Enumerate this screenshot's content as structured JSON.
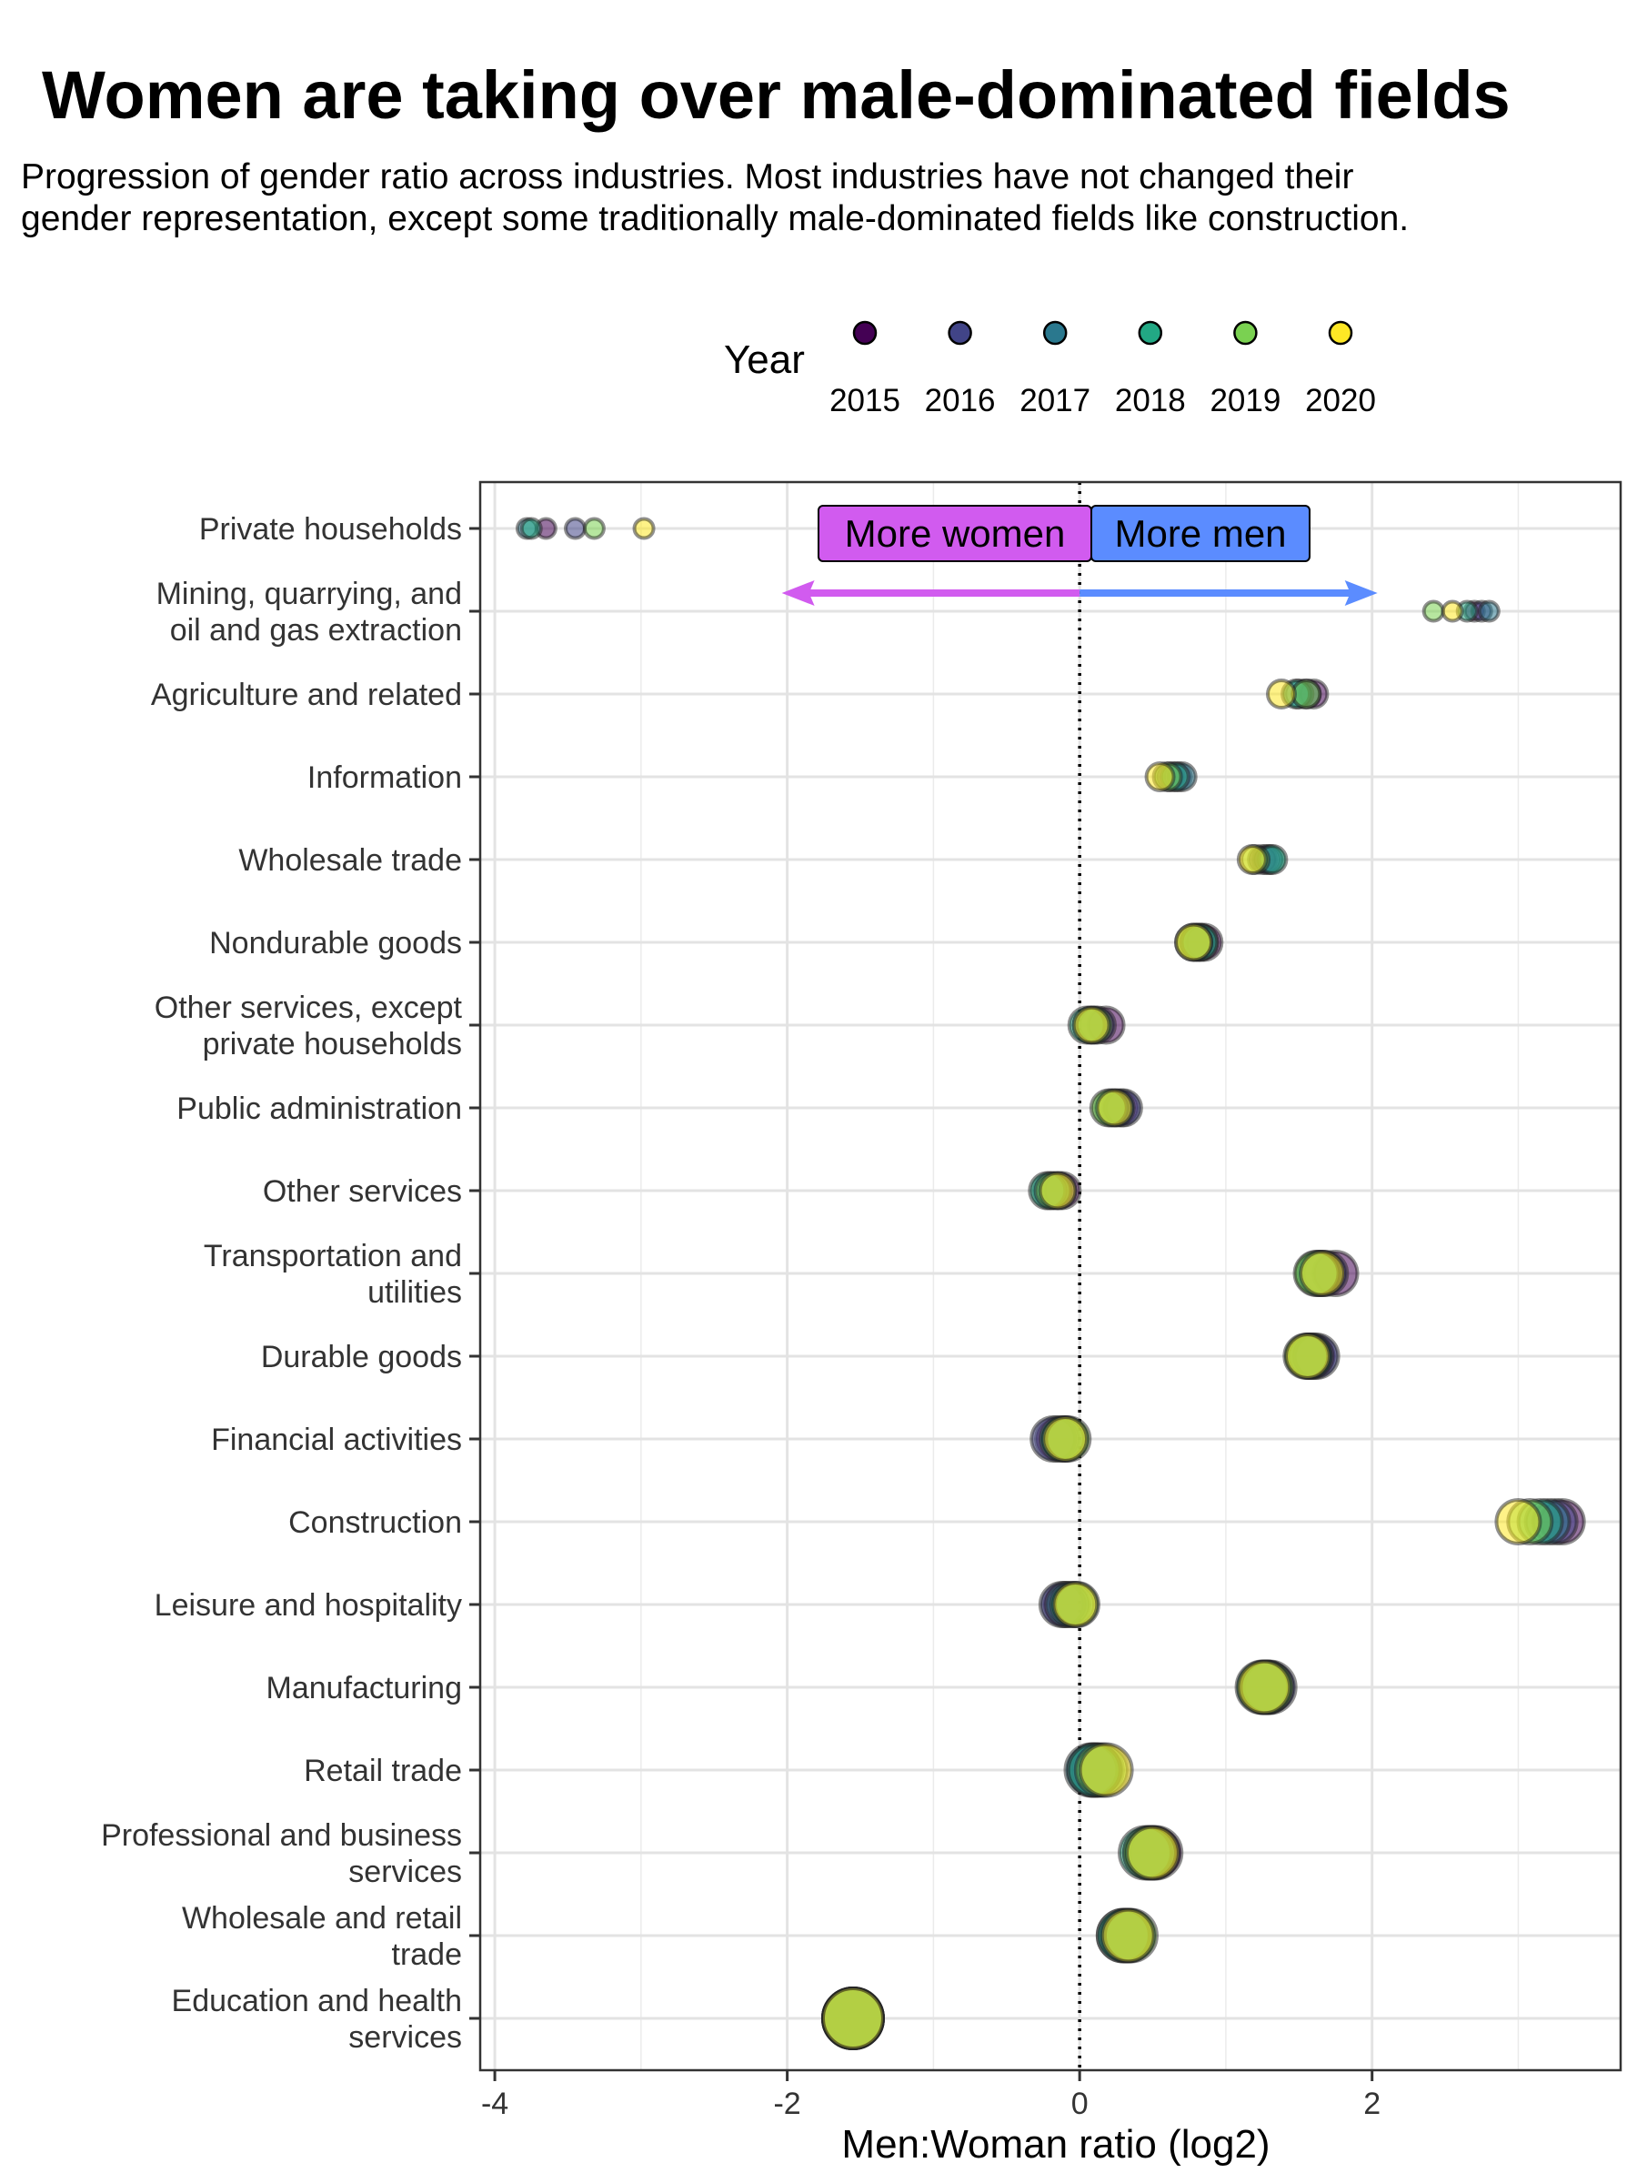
{
  "chart_data": {
    "type": "scatter",
    "title": "Women are taking over male-dominated fields",
    "subtitle": "Progression of gender ratio across industries. Most industries have not changed their gender representation, except some traditionally male-dominated fields like construction.",
    "xlabel": "Men:Woman ratio (log2)",
    "ylabel": "",
    "xlim": [
      -4.1,
      3.7
    ],
    "x_ticks": [
      -4,
      -2,
      0,
      2
    ],
    "x_tick_labels": [
      "-4",
      "-2",
      "0",
      "2"
    ],
    "grid": true,
    "legend": {
      "title": "Year",
      "position": "top",
      "entries": [
        {
          "label": "2015",
          "color": "#440154"
        },
        {
          "label": "2016",
          "color": "#414487"
        },
        {
          "label": "2017",
          "color": "#2a788e"
        },
        {
          "label": "2018",
          "color": "#22a884"
        },
        {
          "label": "2019",
          "color": "#7ad151"
        },
        {
          "label": "2020",
          "color": "#fde725"
        }
      ]
    },
    "reference_line": {
      "x": 0,
      "style": "dotted"
    },
    "annotations": {
      "women_label": "More women",
      "men_label": "More men",
      "women_color": "#d15bef",
      "men_color": "#5b8cff",
      "arrow_from": 0,
      "women_arrow_to": -2,
      "men_arrow_to": 2
    },
    "categories": [
      "Private households",
      "Mining, quarrying, and\noil and gas extraction",
      "Agriculture and related",
      "Information",
      "Wholesale trade",
      "Nondurable goods",
      "Other services, except\nprivate households",
      "Public administration",
      "Other services",
      "Transportation and\nutilities",
      "Durable goods",
      "Financial activities",
      "Construction",
      "Leisure and hospitality",
      "Manufacturing",
      "Retail trade",
      "Professional and business\nservices",
      "Wholesale and retail\ntrade",
      "Education and health\nservices"
    ],
    "years": [
      "2015",
      "2016",
      "2017",
      "2018",
      "2019",
      "2020"
    ],
    "values_by_year": [
      [
        -3.65,
        2.7,
        1.6,
        0.62,
        1.25,
        0.85,
        0.18,
        0.28,
        -0.12,
        1.75,
        1.6,
        -0.15,
        3.3,
        -0.1,
        1.28,
        0.1,
        0.52,
        0.3,
        -1.55
      ],
      [
        -3.45,
        2.75,
        1.55,
        0.67,
        1.28,
        0.82,
        0.12,
        0.3,
        -0.15,
        1.68,
        1.62,
        -0.18,
        3.25,
        -0.12,
        1.3,
        0.12,
        0.5,
        0.32,
        -1.55
      ],
      [
        -3.78,
        2.8,
        1.5,
        0.7,
        1.3,
        0.8,
        0.08,
        0.25,
        -0.2,
        1.65,
        1.58,
        -0.1,
        3.2,
        -0.08,
        1.27,
        0.08,
        0.48,
        0.33,
        -1.55
      ],
      [
        -3.75,
        2.65,
        1.48,
        0.65,
        1.32,
        0.82,
        0.05,
        0.22,
        -0.22,
        1.63,
        1.57,
        -0.12,
        3.15,
        -0.05,
        1.25,
        0.1,
        0.45,
        0.3,
        -1.55
      ],
      [
        -3.32,
        2.42,
        1.55,
        0.6,
        1.2,
        0.78,
        0.1,
        0.2,
        -0.18,
        1.62,
        1.55,
        -0.08,
        3.08,
        -0.02,
        1.28,
        0.15,
        0.48,
        0.35,
        -1.55
      ],
      [
        -2.98,
        2.55,
        1.38,
        0.55,
        1.18,
        0.78,
        0.08,
        0.24,
        -0.15,
        1.66,
        1.56,
        -0.1,
        3.0,
        -0.03,
        1.26,
        0.18,
        0.5,
        0.33,
        -1.55
      ]
    ],
    "point_size_rank": [
      1,
      1,
      2,
      2,
      2,
      3,
      3,
      3,
      3,
      4,
      4,
      4,
      4,
      4,
      5,
      5,
      5,
      5,
      6
    ]
  }
}
